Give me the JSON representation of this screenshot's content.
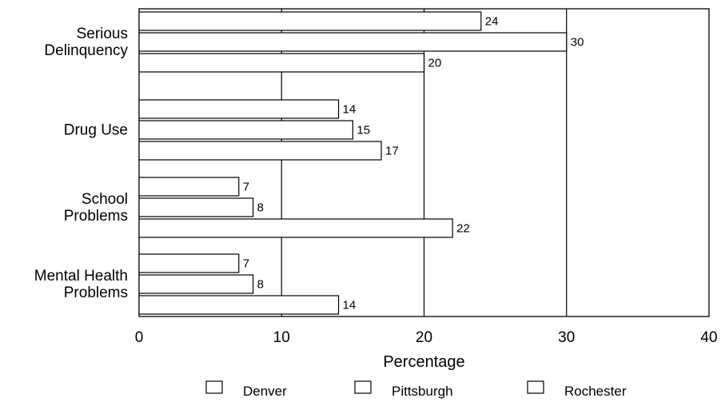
{
  "chart_data": {
    "type": "bar",
    "orientation": "horizontal",
    "categories": [
      [
        "Serious",
        "Delinquency"
      ],
      [
        "Drug Use"
      ],
      [
        "School",
        "Problems"
      ],
      [
        "Mental Health",
        "Problems"
      ]
    ],
    "series": [
      {
        "name": "Denver",
        "values": [
          24,
          14,
          7,
          7
        ]
      },
      {
        "name": "Pittsburgh",
        "values": [
          30,
          15,
          8,
          8
        ]
      },
      {
        "name": "Rochester",
        "values": [
          20,
          17,
          22,
          14
        ]
      }
    ],
    "xlabel": "Percentage",
    "xlim": [
      0,
      40
    ],
    "xticks": [
      0,
      10,
      20,
      30,
      40
    ],
    "grid": true,
    "legend": "bottom",
    "colors": {
      "bar_fill": "#ffffff",
      "stroke": "#000000"
    }
  }
}
